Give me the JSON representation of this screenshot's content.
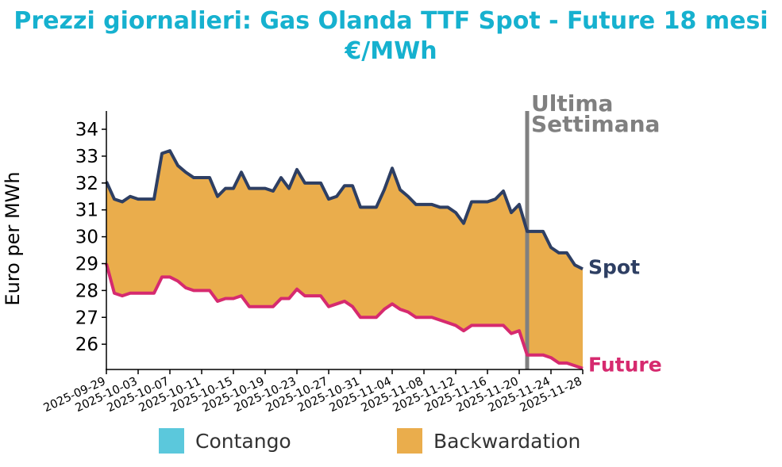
{
  "chart_data": {
    "type": "area",
    "title": "Prezzi giornalieri: Gas Olanda TTF Spot - Future 18 mesi",
    "subtitle": "€/MWh",
    "xlabel": "",
    "ylabel": "Euro per MWh",
    "start_date": "2025-09-29",
    "x_tick_labels": [
      "2025-09-29",
      "2025-10-03",
      "2025-10-07",
      "2025-10-11",
      "2025-10-15",
      "2025-10-19",
      "2025-10-23",
      "2025-10-27",
      "2025-10-31",
      "2025-11-04",
      "2025-11-08",
      "2025-11-12",
      "2025-11-16",
      "2025-11-20",
      "2025-11-24",
      "2025-11-28"
    ],
    "y_ticks": [
      26,
      27,
      28,
      29,
      30,
      31,
      32,
      33,
      34
    ],
    "ylim": [
      25.06,
      34.68
    ],
    "grid": false,
    "series": [
      {
        "name": "Spot",
        "color": "#2e3f63",
        "values": [
          32.05,
          31.4,
          31.3,
          31.5,
          31.4,
          31.4,
          31.4,
          33.1,
          33.2,
          32.65,
          32.4,
          32.2,
          32.2,
          32.2,
          31.5,
          31.8,
          31.8,
          32.4,
          31.8,
          31.8,
          31.8,
          31.7,
          32.2,
          31.8,
          32.5,
          32.0,
          32.0,
          32.0,
          31.4,
          31.5,
          31.9,
          31.9,
          31.1,
          31.1,
          31.1,
          31.75,
          32.55,
          31.75,
          31.5,
          31.2,
          31.2,
          31.2,
          31.1,
          31.1,
          30.9,
          30.5,
          31.3,
          31.3,
          31.3,
          31.4,
          31.7,
          30.9,
          31.2,
          30.2,
          30.2,
          30.2,
          29.6,
          29.4,
          29.4,
          28.95,
          28.8
        ]
      },
      {
        "name": "Future",
        "color": "#d62a6f",
        "values": [
          29.0,
          27.9,
          27.8,
          27.9,
          27.9,
          27.9,
          27.9,
          28.5,
          28.5,
          28.35,
          28.1,
          28.0,
          28.0,
          28.0,
          27.6,
          27.7,
          27.7,
          27.8,
          27.4,
          27.4,
          27.4,
          27.4,
          27.7,
          27.7,
          28.05,
          27.8,
          27.8,
          27.8,
          27.4,
          27.5,
          27.6,
          27.4,
          27.0,
          27.0,
          27.0,
          27.3,
          27.5,
          27.3,
          27.2,
          27.0,
          27.0,
          27.0,
          26.9,
          26.8,
          26.7,
          26.5,
          26.7,
          26.7,
          26.7,
          26.7,
          26.7,
          26.4,
          26.5,
          25.6,
          25.6,
          25.6,
          25.5,
          25.3,
          25.3,
          25.2,
          25.1
        ]
      }
    ],
    "annotation": {
      "label_line1": "Ultima",
      "label_line2": "Settimana",
      "day_index": 53,
      "color": "#808080"
    },
    "legend": [
      {
        "label": "Contango",
        "color": "#5bc8dc"
      },
      {
        "label": "Backwardation",
        "color": "#eaad4c"
      }
    ],
    "legend_position": "bottom"
  }
}
